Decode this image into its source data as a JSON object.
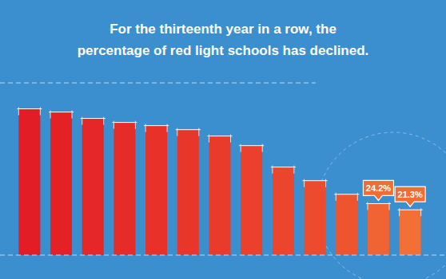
{
  "chart_data": {
    "type": "bar",
    "title": "For the thirteenth year in a row, the\npercentage of red light schools has declined.",
    "categories": [
      null,
      null,
      null,
      null,
      null,
      null,
      null,
      null,
      null,
      null,
      null,
      null,
      null
    ],
    "values": [
      68.8,
      67.3,
      64.3,
      62.4,
      60.9,
      59.0,
      56.0,
      51.5,
      41.4,
      35.0,
      28.6,
      24.2,
      21.3
    ],
    "value_labels": [
      null,
      null,
      null,
      null,
      null,
      null,
      null,
      null,
      null,
      null,
      null,
      "24.2%",
      "21.3%"
    ],
    "data_labels": true,
    "colors": [
      "#e31d25",
      "#e42226",
      "#e52727",
      "#e62c28",
      "#e73129",
      "#e8362a",
      "#e93b2b",
      "#ea402c",
      "#eb462d",
      "#ec4b2e",
      "#ee552f",
      "#f06333",
      "#f27036"
    ],
    "ylim": [
      0,
      81
    ],
    "tick_labels": false,
    "grid": false
  }
}
